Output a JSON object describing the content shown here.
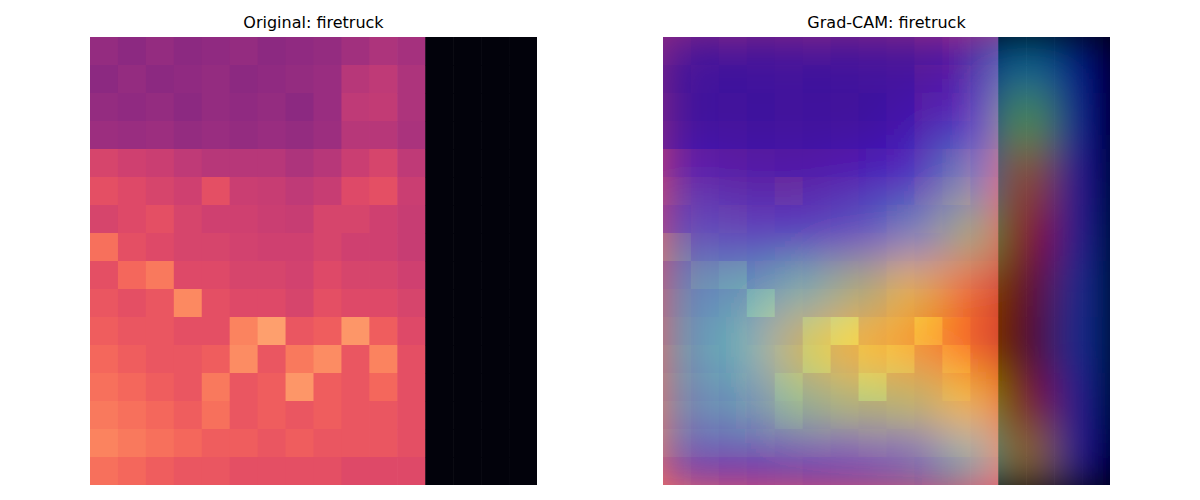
{
  "chart_data": [
    {
      "type": "heatmap",
      "title": "Original: firetruck",
      "tick_labels": false,
      "color": "magma",
      "zlim": [
        0,
        1
      ],
      "cells": [
        [
          0.42,
          0.4,
          0.42,
          0.4,
          0.41,
          0.42,
          0.4,
          0.41,
          0.42,
          0.45,
          0.48,
          0.46,
          0.02,
          0.02,
          0.02,
          0.02
        ],
        [
          0.4,
          0.42,
          0.4,
          0.41,
          0.42,
          0.4,
          0.41,
          0.42,
          0.43,
          0.5,
          0.52,
          0.48,
          0.02,
          0.02,
          0.02,
          0.02
        ],
        [
          0.42,
          0.41,
          0.42,
          0.4,
          0.42,
          0.41,
          0.42,
          0.4,
          0.43,
          0.52,
          0.53,
          0.48,
          0.02,
          0.02,
          0.02,
          0.02
        ],
        [
          0.44,
          0.43,
          0.44,
          0.42,
          0.43,
          0.42,
          0.43,
          0.42,
          0.44,
          0.5,
          0.5,
          0.47,
          0.02,
          0.02,
          0.02,
          0.02
        ],
        [
          0.58,
          0.56,
          0.55,
          0.52,
          0.5,
          0.5,
          0.5,
          0.48,
          0.5,
          0.55,
          0.58,
          0.52,
          0.02,
          0.02,
          0.02,
          0.02
        ],
        [
          0.62,
          0.6,
          0.58,
          0.56,
          0.62,
          0.55,
          0.54,
          0.52,
          0.54,
          0.6,
          0.62,
          0.55,
          0.02,
          0.02,
          0.02,
          0.02
        ],
        [
          0.58,
          0.6,
          0.62,
          0.58,
          0.56,
          0.56,
          0.55,
          0.54,
          0.58,
          0.58,
          0.56,
          0.54,
          0.02,
          0.02,
          0.02,
          0.02
        ],
        [
          0.7,
          0.62,
          0.6,
          0.58,
          0.58,
          0.57,
          0.56,
          0.56,
          0.58,
          0.56,
          0.56,
          0.54,
          0.02,
          0.02,
          0.02,
          0.02
        ],
        [
          0.62,
          0.68,
          0.72,
          0.6,
          0.6,
          0.58,
          0.58,
          0.57,
          0.6,
          0.58,
          0.58,
          0.56,
          0.02,
          0.02,
          0.02,
          0.02
        ],
        [
          0.64,
          0.62,
          0.64,
          0.75,
          0.62,
          0.6,
          0.6,
          0.58,
          0.62,
          0.6,
          0.6,
          0.58,
          0.02,
          0.02,
          0.02,
          0.02
        ],
        [
          0.66,
          0.64,
          0.64,
          0.62,
          0.62,
          0.74,
          0.8,
          0.64,
          0.66,
          0.78,
          0.66,
          0.6,
          0.02,
          0.02,
          0.02,
          0.02
        ],
        [
          0.68,
          0.66,
          0.64,
          0.64,
          0.66,
          0.76,
          0.64,
          0.72,
          0.76,
          0.64,
          0.74,
          0.62,
          0.02,
          0.02,
          0.02,
          0.02
        ],
        [
          0.7,
          0.68,
          0.66,
          0.64,
          0.72,
          0.64,
          0.66,
          0.78,
          0.66,
          0.64,
          0.68,
          0.62,
          0.02,
          0.02,
          0.02,
          0.02
        ],
        [
          0.72,
          0.7,
          0.68,
          0.66,
          0.7,
          0.64,
          0.66,
          0.64,
          0.66,
          0.64,
          0.64,
          0.62,
          0.02,
          0.02,
          0.02,
          0.02
        ],
        [
          0.74,
          0.72,
          0.7,
          0.68,
          0.66,
          0.66,
          0.64,
          0.66,
          0.64,
          0.64,
          0.64,
          0.62,
          0.02,
          0.02,
          0.02,
          0.02
        ],
        [
          0.7,
          0.68,
          0.66,
          0.64,
          0.64,
          0.62,
          0.62,
          0.62,
          0.62,
          0.6,
          0.6,
          0.6,
          0.02,
          0.02,
          0.02,
          0.02
        ]
      ]
    },
    {
      "type": "heatmap",
      "title": "Grad-CAM: firetruck",
      "tick_labels": false,
      "color": "jet",
      "zlim": [
        0,
        1
      ],
      "cells": [
        [
          0.05,
          0.05,
          0.05,
          0.05,
          0.05,
          0.08,
          0.3,
          0.1
        ],
        [
          0.05,
          0.05,
          0.05,
          0.05,
          0.08,
          0.15,
          0.5,
          0.12
        ],
        [
          0.1,
          0.08,
          0.08,
          0.1,
          0.15,
          0.3,
          0.75,
          0.15
        ],
        [
          0.2,
          0.18,
          0.18,
          0.22,
          0.3,
          0.5,
          0.88,
          0.18
        ],
        [
          0.3,
          0.32,
          0.4,
          0.5,
          0.6,
          0.75,
          0.95,
          0.2
        ],
        [
          0.32,
          0.38,
          0.55,
          0.62,
          0.68,
          0.78,
          0.98,
          0.2
        ],
        [
          0.28,
          0.32,
          0.45,
          0.5,
          0.52,
          0.62,
          0.9,
          0.18
        ],
        [
          0.15,
          0.15,
          0.18,
          0.2,
          0.25,
          0.4,
          0.7,
          0.12
        ]
      ]
    }
  ]
}
